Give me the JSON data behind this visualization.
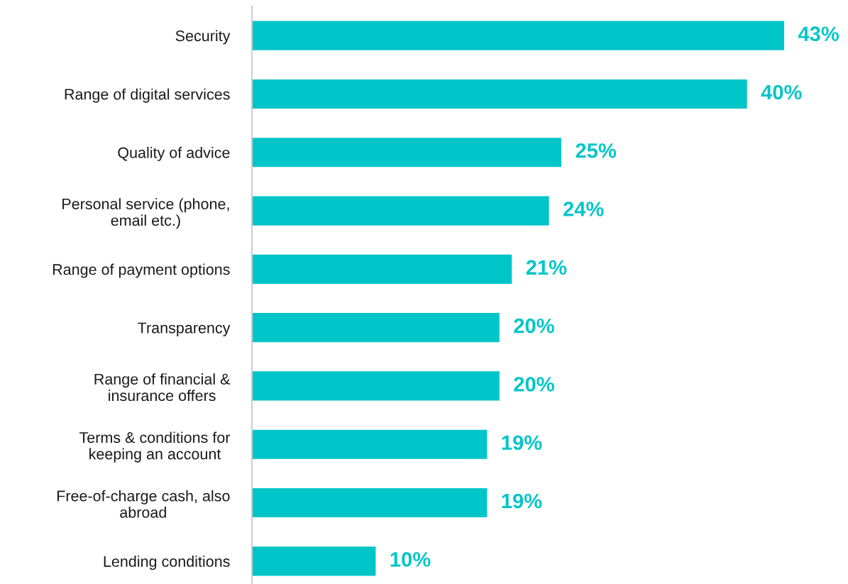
{
  "chart_data": {
    "type": "bar",
    "orientation": "horizontal",
    "categories": [
      "Security",
      "Range of digital services",
      "Quality of advice",
      "Personal service (phone,\nemail etc.)",
      "Range of payment options",
      "Transparency",
      "Range of financial &\ninsurance offers",
      "Terms & conditions for\nkeeping an account",
      "Free-of-charge cash, also\nabroad",
      "Lending conditions"
    ],
    "values": [
      43,
      40,
      25,
      24,
      21,
      20,
      20,
      19,
      19,
      10
    ],
    "value_labels": [
      "43%",
      "40%",
      "25%",
      "24%",
      "21%",
      "20%",
      "20%",
      "19%",
      "19%",
      "10%"
    ],
    "color": "#00c5c8",
    "tick_labels": "y",
    "grid": false,
    "legend": false
  }
}
